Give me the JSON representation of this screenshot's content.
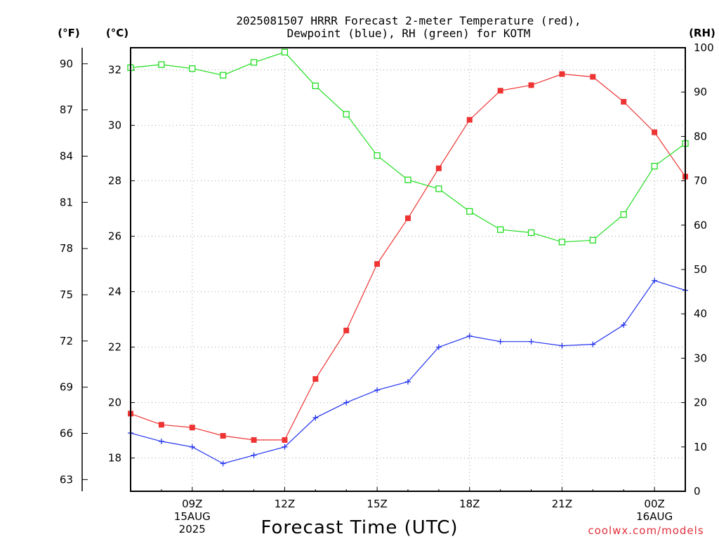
{
  "chart_data": {
    "type": "line",
    "title": [
      "2025081507 HRRR Forecast 2-meter Temperature (red),",
      "Dewpoint (blue), RH (green) for KOTM"
    ],
    "xlabel": "Forecast Time (UTC)",
    "credit": "coolwx.com/models",
    "units": {
      "fahrenheit": "(°F)",
      "celsius": "(°C)",
      "rh": "(RH)"
    },
    "x_hours": [
      7,
      8,
      9,
      10,
      11,
      12,
      13,
      14,
      15,
      16,
      17,
      18,
      19,
      20,
      21,
      22,
      23,
      24,
      25
    ],
    "x_range": [
      7,
      25
    ],
    "x_ticks": [
      {
        "hour": 9,
        "lines": [
          "09Z",
          "15AUG",
          "2025"
        ]
      },
      {
        "hour": 12,
        "lines": [
          "12Z"
        ]
      },
      {
        "hour": 15,
        "lines": [
          "15Z"
        ]
      },
      {
        "hour": 18,
        "lines": [
          "18Z"
        ]
      },
      {
        "hour": 21,
        "lines": [
          "21Z"
        ]
      },
      {
        "hour": 24,
        "lines": [
          "00Z",
          "16AUG"
        ]
      }
    ],
    "y_celsius_range": [
      16.8,
      32.8
    ],
    "y_celsius_ticks": [
      18,
      20,
      22,
      24,
      26,
      28,
      30,
      32
    ],
    "y_fahrenheit_ticks": [
      63,
      66,
      69,
      72,
      75,
      78,
      81,
      84,
      87,
      90
    ],
    "y_rh_range": [
      0,
      100
    ],
    "y_rh_ticks": [
      0,
      10,
      20,
      30,
      40,
      50,
      60,
      70,
      80,
      90,
      100
    ],
    "series": [
      {
        "name": "Temperature (red)",
        "axis": "celsius",
        "color": "#ee3333",
        "marker": "filled-square",
        "values": [
          19.6,
          19.2,
          19.1,
          18.8,
          18.65,
          18.65,
          20.85,
          22.6,
          25.0,
          26.65,
          28.45,
          30.2,
          31.25,
          31.45,
          31.85,
          31.75,
          30.85,
          29.75,
          28.15
        ]
      },
      {
        "name": "Dewpoint (blue)",
        "axis": "celsius",
        "color": "#2233ee",
        "marker": "plus",
        "values": [
          18.9,
          18.6,
          18.4,
          17.8,
          18.1,
          18.4,
          19.45,
          20.0,
          20.45,
          20.75,
          22.0,
          22.4,
          22.2,
          22.2,
          22.05,
          22.1,
          22.8,
          24.4,
          24.05
        ]
      },
      {
        "name": "RH (green)",
        "axis": "rh",
        "color": "#22dd22",
        "marker": "hollow-square",
        "values": [
          95.5,
          96.2,
          95.3,
          93.8,
          96.7,
          99.0,
          91.4,
          85.0,
          75.7,
          70.2,
          68.2,
          63.1,
          59.0,
          58.3,
          56.2,
          56.6,
          62.4,
          73.3,
          78.4
        ]
      }
    ]
  }
}
